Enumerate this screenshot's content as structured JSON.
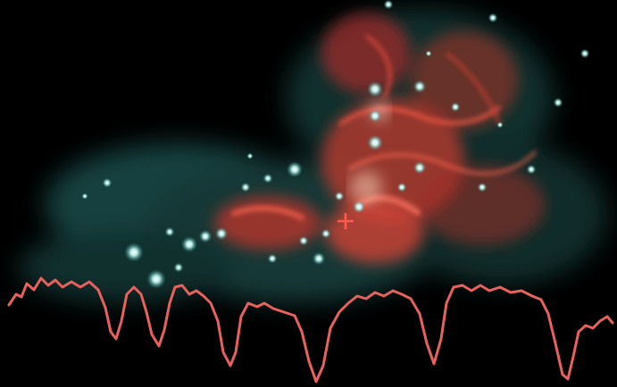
{
  "image": {
    "subject": "nebula-with-spectrum-overlay",
    "background_color": "#000000",
    "nebula_colors": [
      "#e8453c",
      "#ff6a55",
      "#2f8a86",
      "#6fd6cf"
    ],
    "marker_icon": "crosshair-plus-icon",
    "marker_color": "#ff5a4e",
    "spectrum_color": "#e8615c"
  }
}
